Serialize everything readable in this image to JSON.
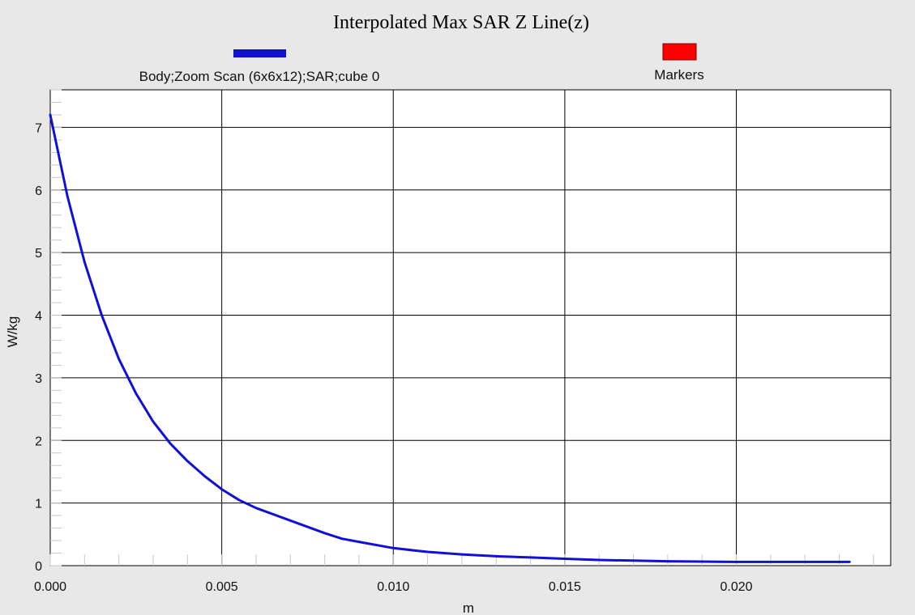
{
  "chart_data": {
    "type": "line",
    "title": "Interpolated Max SAR Z Line(z)",
    "xlabel": "m",
    "ylabel": "W/kg",
    "xlim": [
      0,
      0.0245
    ],
    "ylim": [
      0,
      7.6
    ],
    "x_ticks": [
      "0.000",
      "0.005",
      "0.010",
      "0.015",
      "0.020"
    ],
    "y_ticks": [
      "0",
      "1",
      "2",
      "3",
      "4",
      "5",
      "6",
      "7"
    ],
    "x_tick_values": [
      0,
      0.005,
      0.01,
      0.015,
      0.02
    ],
    "y_tick_values": [
      0,
      1,
      2,
      3,
      4,
      5,
      6,
      7
    ],
    "grid": true,
    "legend_position": "top",
    "legend": [
      {
        "label": "Body;Zoom Scan (6x6x12);SAR;cube 0",
        "color": "#1010d8"
      },
      {
        "label": "Markers",
        "color": "#ff0000"
      }
    ],
    "series": [
      {
        "name": "Body;Zoom Scan (6x6x12);SAR;cube 0",
        "color": "#1010d8",
        "x": [
          0,
          0.0005,
          0.001,
          0.0015,
          0.002,
          0.0025,
          0.003,
          0.0035,
          0.004,
          0.0045,
          0.005,
          0.0055,
          0.006,
          0.007,
          0.008,
          0.0085,
          0.009,
          0.01,
          0.011,
          0.012,
          0.013,
          0.014,
          0.015,
          0.016,
          0.017,
          0.018,
          0.019,
          0.02,
          0.021,
          0.022,
          0.0233
        ],
        "y": [
          7.2,
          5.9,
          4.85,
          4.0,
          3.3,
          2.75,
          2.3,
          1.95,
          1.67,
          1.43,
          1.22,
          1.05,
          0.92,
          0.72,
          0.52,
          0.43,
          0.38,
          0.28,
          0.22,
          0.18,
          0.15,
          0.13,
          0.11,
          0.09,
          0.08,
          0.07,
          0.065,
          0.06,
          0.06,
          0.06,
          0.06
        ]
      }
    ]
  },
  "colors": {
    "background": "#e8e8e8",
    "plot_background": "#ffffff",
    "grid": "#000000"
  }
}
